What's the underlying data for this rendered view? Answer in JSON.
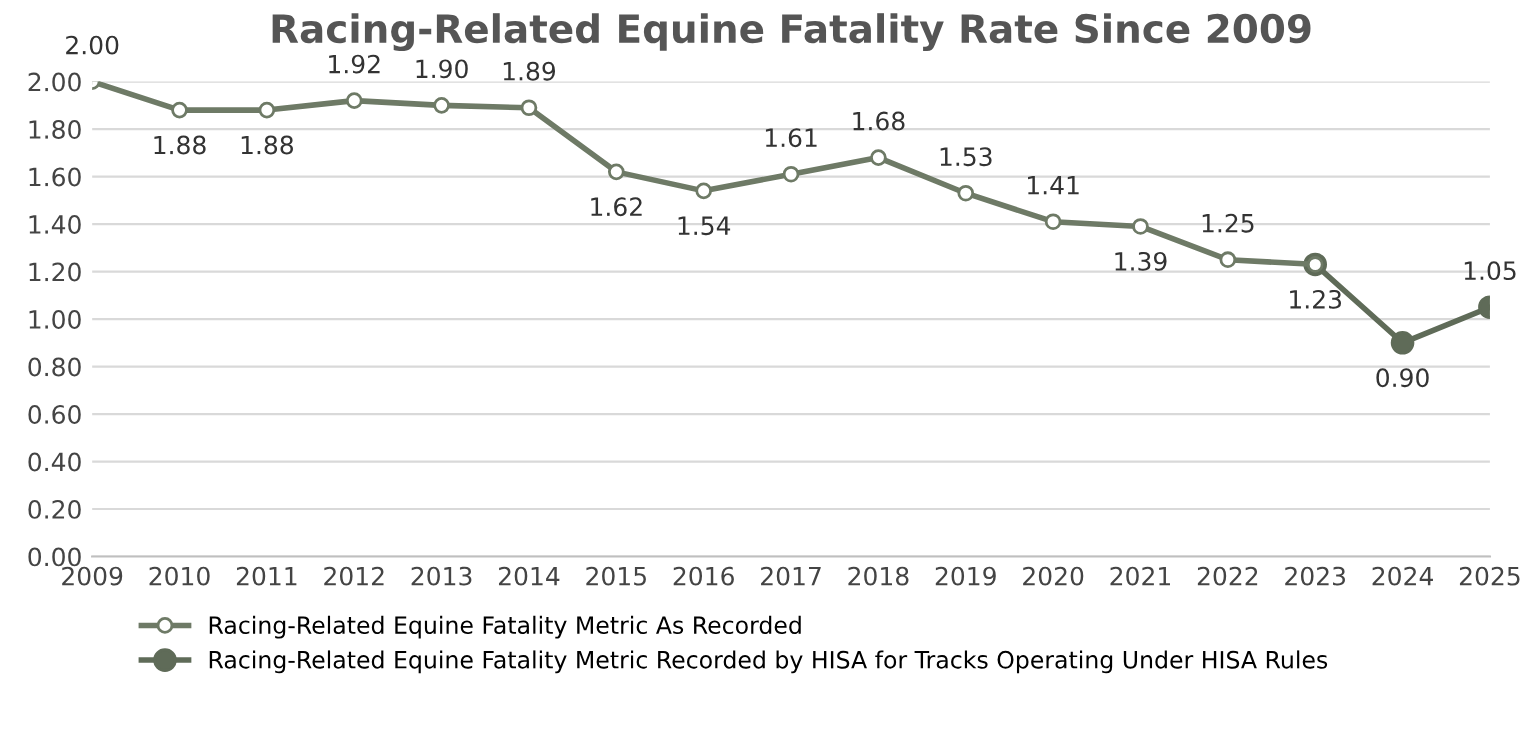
{
  "chart_data": {
    "type": "line",
    "title": "Racing-Related Equine Fatality Rate Since 2009",
    "categories": [
      "2009",
      "2010",
      "2011",
      "2012",
      "2013",
      "2014",
      "2015",
      "2016",
      "2017",
      "2018",
      "2019",
      "2020",
      "2021",
      "2022",
      "2023",
      "2024",
      "2025"
    ],
    "series": [
      {
        "name": "Racing-Related Equine Fatality Metric As Recorded",
        "color": "#6e7a66",
        "values": [
          2.0,
          1.88,
          1.88,
          1.92,
          1.9,
          1.89,
          1.62,
          1.54,
          1.61,
          1.68,
          1.53,
          1.41,
          1.39,
          1.25,
          1.23,
          null,
          null
        ],
        "value_labels": [
          "2.00",
          "1.88",
          "1.88",
          "1.92",
          "1.90",
          "1.89",
          "1.62",
          "1.54",
          "1.61",
          "1.68",
          "1.53",
          "1.41",
          "1.39",
          "1.25",
          "1.23",
          null,
          null
        ]
      },
      {
        "name": "Racing-Related Equine Fatality Metric Recorded by HISA for Tracks Operating Under HISA Rules",
        "color": "#5f6b58",
        "values": [
          null,
          null,
          null,
          null,
          null,
          null,
          null,
          null,
          null,
          null,
          null,
          null,
          null,
          null,
          1.23,
          0.9,
          1.05
        ],
        "value_labels": [
          null,
          null,
          null,
          null,
          null,
          null,
          null,
          null,
          null,
          null,
          null,
          null,
          null,
          null,
          null,
          "0.90",
          "1.05"
        ]
      }
    ],
    "ylim": [
      0,
      2.0
    ],
    "yticks": [
      {
        "value": 0,
        "label": "0.00"
      },
      {
        "value": 0.2,
        "label": "0.20"
      },
      {
        "value": 0.4,
        "label": "0.40"
      },
      {
        "value": 0.6,
        "label": "0.60"
      },
      {
        "value": 0.8,
        "label": "0.80"
      },
      {
        "value": 1.0,
        "label": "1.00"
      },
      {
        "value": 1.2,
        "label": "1.20"
      },
      {
        "value": 1.4,
        "label": "1.40"
      },
      {
        "value": 1.6,
        "label": "1.60"
      },
      {
        "value": 1.8,
        "label": "1.80"
      },
      {
        "value": 2.0,
        "label": "2.00"
      }
    ],
    "grid": "y",
    "legend": "bottom",
    "marker": "circle",
    "line_style": "solid"
  }
}
